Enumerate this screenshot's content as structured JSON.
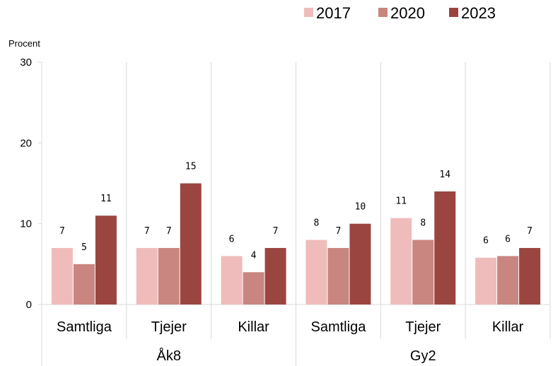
{
  "chart_data": {
    "type": "bar",
    "ylabel": "Procent",
    "ylim": [
      0,
      30
    ],
    "yticks": [
      0,
      10,
      20,
      30
    ],
    "grid": false,
    "legend_position": "top-right",
    "groups": [
      {
        "label": "Åk8",
        "categories": [
          "Samtliga",
          "Tjejer",
          "Killar"
        ]
      },
      {
        "label": "Gy2",
        "categories": [
          "Samtliga",
          "Tjejer",
          "Killar"
        ]
      }
    ],
    "series": [
      {
        "name": "2017",
        "color": "#efbcbb",
        "values": [
          7,
          7,
          6,
          8,
          10.7,
          5.8
        ],
        "labels": [
          "7",
          "7",
          "6",
          "8",
          "11",
          "6"
        ]
      },
      {
        "name": "2020",
        "color": "#c98580",
        "values": [
          5,
          7,
          4,
          7,
          8,
          6
        ],
        "labels": [
          "5",
          "7",
          "4",
          "7",
          "8",
          "6"
        ]
      },
      {
        "name": "2023",
        "color": "#9b4541",
        "values": [
          11,
          15,
          7,
          10,
          14,
          7
        ],
        "labels": [
          "11",
          "15",
          "7",
          "10",
          "14",
          "7"
        ]
      }
    ]
  }
}
